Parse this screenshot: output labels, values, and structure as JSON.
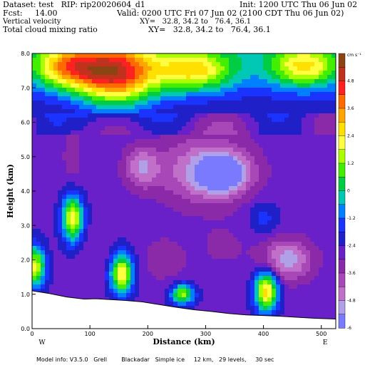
{
  "header": {
    "dataset": "Dataset: test   RIP: rip20020604_d1",
    "init": "Init: 1200 UTC Thu 06 Jun 02",
    "fcst": "Fcst:     14.00",
    "valid": "Valid: 0200 UTC Fri 07 Jun 02 (2100 CDT Thu 06 Jun 02)",
    "field1": "Vertical velocity",
    "xy1": "XY=   32.8, 34.2 to   76.4, 36.1",
    "field2": "Total cloud mixing ratio",
    "xy2": "XY=   32.8, 34.2 to   76.4, 36.1"
  },
  "footer": "Model info: V3.5.0   Grell        Blackadar   Simple ice     12 km,   29 levels,     30 sec",
  "chart_data": {
    "type": "heatmap",
    "xlabel": "Distance (km)",
    "ylabel": "Height (km)",
    "xlim": [
      0,
      525
    ],
    "ylim": [
      0,
      8
    ],
    "x_ticks": [
      "0",
      "100",
      "200",
      "300",
      "400",
      "500"
    ],
    "y_ticks": [
      "0.0",
      "1.0",
      "2.0",
      "3.0",
      "4.0",
      "5.0",
      "6.0",
      "7.0",
      "8.0"
    ],
    "x_end_labels": {
      "left": "W",
      "right": "E"
    },
    "colorbar": {
      "unit": "cm s⁻¹",
      "labels": [
        "4.8",
        "3.6",
        "2.4",
        "1.2",
        "0",
        "-1.2",
        "-2.4",
        "-3.6",
        "-4.8",
        "-6"
      ],
      "colors": [
        "#8b4513",
        "#c0321e",
        "#ff2020",
        "#ff6a00",
        "#ffa500",
        "#ffe000",
        "#ffff40",
        "#aaff00",
        "#44ee00",
        "#00cc44",
        "#00c8b4",
        "#0080ff",
        "#1a33ff",
        "#2020c8",
        "#6a20c8",
        "#8a2aa8",
        "#a848b8",
        "#c070c8",
        "#b0a0e8",
        "#7a7aff"
      ]
    },
    "terrain_km": [
      [
        0,
        1.1
      ],
      [
        30,
        1.02
      ],
      [
        60,
        0.92
      ],
      [
        90,
        0.86
      ],
      [
        110,
        0.87
      ],
      [
        130,
        0.85
      ],
      [
        160,
        0.82
      ],
      [
        190,
        0.78
      ],
      [
        220,
        0.7
      ],
      [
        250,
        0.62
      ],
      [
        280,
        0.55
      ],
      [
        310,
        0.5
      ],
      [
        340,
        0.44
      ],
      [
        370,
        0.4
      ],
      [
        400,
        0.38
      ],
      [
        430,
        0.36
      ],
      [
        460,
        0.33
      ],
      [
        490,
        0.3
      ],
      [
        525,
        0.28
      ]
    ],
    "features": [
      {
        "x": 145,
        "y": 7.4,
        "rx": 70,
        "ry": 0.9,
        "v": 3.6
      },
      {
        "x": 60,
        "y": 7.6,
        "rx": 60,
        "ry": 0.6,
        "v": 1.6
      },
      {
        "x": 280,
        "y": 7.5,
        "rx": 70,
        "ry": 0.6,
        "v": 1.4
      },
      {
        "x": 470,
        "y": 7.6,
        "rx": 60,
        "ry": 0.6,
        "v": 1.2
      },
      {
        "x": 300,
        "y": 4.6,
        "rx": 80,
        "ry": 1.0,
        "v": -5.0
      },
      {
        "x": 330,
        "y": 4.5,
        "rx": 40,
        "ry": 0.5,
        "v": -5.8
      },
      {
        "x": 190,
        "y": 4.7,
        "rx": 30,
        "ry": 0.6,
        "v": -4.6
      },
      {
        "x": 440,
        "y": 2.0,
        "rx": 45,
        "ry": 0.6,
        "v": -5.2
      },
      {
        "x": 70,
        "y": 5.0,
        "rx": 18,
        "ry": 0.9,
        "v": -3.4
      },
      {
        "x": 400,
        "y": 3.2,
        "rx": 25,
        "ry": 0.5,
        "v": -1.5
      },
      {
        "x": 70,
        "y": 3.2,
        "rx": 18,
        "ry": 0.7,
        "v": 2.2
      },
      {
        "x": 155,
        "y": 1.6,
        "rx": 20,
        "ry": 0.6,
        "v": 2.4
      },
      {
        "x": 405,
        "y": 1.1,
        "rx": 20,
        "ry": 0.6,
        "v": 2.8
      },
      {
        "x": 5,
        "y": 1.8,
        "rx": 18,
        "ry": 0.6,
        "v": 2.0
      },
      {
        "x": 260,
        "y": 1.0,
        "rx": 20,
        "ry": 0.3,
        "v": 1.4
      },
      {
        "x": 110,
        "y": 2.2,
        "rx": 40,
        "ry": 0.7,
        "v": -3.0
      },
      {
        "x": 230,
        "y": 2.0,
        "rx": 40,
        "ry": 0.7,
        "v": -3.4
      },
      {
        "x": 330,
        "y": 2.4,
        "rx": 40,
        "ry": 0.6,
        "v": -3.2
      }
    ],
    "background_value": -2.6
  }
}
